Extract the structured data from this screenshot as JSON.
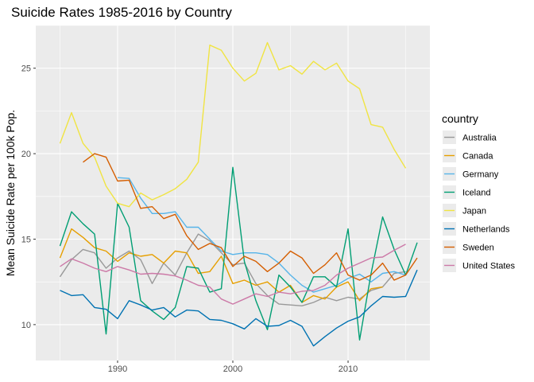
{
  "chart_data": {
    "type": "line",
    "title": "Suicide Rates 1985-2016 by Country",
    "xlabel": "",
    "ylabel": "Mean Suicide Rate per 100k Pop.",
    "xlim": [
      1982.9,
      2017.1
    ],
    "ylim": [
      7.9,
      27.5
    ],
    "x_ticks": [
      1990,
      2000,
      2010
    ],
    "y_ticks": [
      10,
      15,
      20,
      25
    ],
    "grid": true,
    "legend_title": "country",
    "legend_position": "right",
    "series": [
      {
        "name": "Australia",
        "color": "#999999",
        "x": [
          1985,
          1986,
          1987,
          1988,
          1989,
          1990,
          1991,
          1992,
          1993,
          1994,
          1995,
          1996,
          1997,
          1998,
          1999,
          2000,
          2001,
          2002,
          2003,
          2004,
          2005,
          2006,
          2007,
          2008,
          2009,
          2010,
          2011,
          2012,
          2013,
          2014,
          2015
        ],
        "y": [
          12.8,
          13.8,
          14.4,
          14.2,
          13.3,
          13.9,
          14.3,
          13.8,
          12.4,
          13.6,
          12.9,
          14.2,
          15.3,
          14.9,
          14.2,
          13.5,
          13.6,
          12.4,
          11.7,
          11.2,
          11.15,
          11.1,
          11.3,
          11.6,
          11.4,
          11.6,
          11.5,
          12.0,
          12.2,
          13.0,
          13.1
        ]
      },
      {
        "name": "Canada",
        "color": "#E69F00",
        "x": [
          1985,
          1986,
          1987,
          1988,
          1989,
          1990,
          1991,
          1992,
          1993,
          1994,
          1995,
          1996,
          1997,
          1998,
          1999,
          2000,
          2001,
          2002,
          2003,
          2004,
          2005,
          2006,
          2007,
          2008,
          2009,
          2010,
          2011,
          2012,
          2013,
          2014,
          2015
        ],
        "y": [
          13.9,
          15.6,
          15.1,
          14.5,
          14.3,
          13.7,
          14.2,
          14.0,
          14.1,
          13.6,
          14.3,
          14.2,
          13.0,
          13.1,
          14.0,
          12.4,
          12.6,
          12.3,
          12.5,
          11.9,
          12.3,
          11.3,
          11.7,
          11.5,
          12.2,
          12.5,
          11.4,
          12.1,
          12.2,
          null,
          null
        ]
      },
      {
        "name": "Germany",
        "color": "#56B4E9",
        "x": [
          1990,
          1991,
          1992,
          1993,
          1994,
          1995,
          1996,
          1997,
          1998,
          1999,
          2000,
          2001,
          2002,
          2003,
          2004,
          2005,
          2006,
          2007,
          2008,
          2009,
          2010,
          2011,
          2012,
          2013,
          2014,
          2015
        ],
        "y": [
          18.6,
          18.55,
          17.4,
          16.5,
          16.5,
          16.6,
          15.7,
          15.7,
          15.0,
          14.3,
          14.1,
          14.2,
          14.2,
          14.1,
          13.6,
          12.9,
          12.3,
          11.9,
          12.1,
          12.3,
          12.7,
          12.95,
          12.5,
          13.0,
          13.1,
          12.9
        ]
      },
      {
        "name": "Iceland",
        "color": "#009E73",
        "x": [
          1985,
          1986,
          1987,
          1988,
          1989,
          1990,
          1991,
          1992,
          1993,
          1994,
          1995,
          1996,
          1997,
          1998,
          1999,
          2000,
          2001,
          2002,
          2003,
          2004,
          2005,
          2006,
          2007,
          2008,
          2009,
          2010,
          2011,
          2012,
          2013,
          2014,
          2015,
          2016
        ],
        "y": [
          14.6,
          16.6,
          15.9,
          15.3,
          9.45,
          17.1,
          15.7,
          11.4,
          10.8,
          10.3,
          11.0,
          13.4,
          13.3,
          11.9,
          12.1,
          19.2,
          13.7,
          11.4,
          9.7,
          12.9,
          12.2,
          11.3,
          12.8,
          12.8,
          12.2,
          15.6,
          9.1,
          13.0,
          16.3,
          14.4,
          12.9,
          14.8
        ]
      },
      {
        "name": "Japan",
        "color": "#F0E442",
        "x": [
          1985,
          1986,
          1987,
          1988,
          1989,
          1990,
          1991,
          1992,
          1993,
          1994,
          1995,
          1996,
          1997,
          1998,
          1999,
          2000,
          2001,
          2002,
          2003,
          2004,
          2005,
          2006,
          2007,
          2008,
          2009,
          2010,
          2011,
          2012,
          2013,
          2014,
          2015
        ],
        "y": [
          20.6,
          22.4,
          20.6,
          19.8,
          18.1,
          17.1,
          16.9,
          17.7,
          17.3,
          17.6,
          17.95,
          18.5,
          19.5,
          26.35,
          26.05,
          25.0,
          24.25,
          24.7,
          26.5,
          24.9,
          25.15,
          24.65,
          25.4,
          24.9,
          25.3,
          24.25,
          23.8,
          21.7,
          21.55,
          20.25,
          19.15
        ]
      },
      {
        "name": "Netherlands",
        "color": "#0072B2",
        "x": [
          1985,
          1986,
          1987,
          1988,
          1989,
          1990,
          1991,
          1992,
          1993,
          1994,
          1995,
          1996,
          1997,
          1998,
          1999,
          2000,
          2001,
          2002,
          2003,
          2004,
          2005,
          2006,
          2007,
          2008,
          2009,
          2010,
          2011,
          2012,
          2013,
          2014,
          2015,
          2016
        ],
        "y": [
          12.0,
          11.7,
          11.75,
          11.0,
          10.9,
          10.35,
          11.4,
          11.15,
          10.85,
          11.0,
          10.45,
          10.85,
          10.8,
          10.3,
          10.25,
          10.05,
          9.75,
          10.35,
          9.9,
          9.95,
          10.25,
          9.9,
          8.75,
          9.3,
          9.8,
          10.2,
          10.45,
          11.1,
          11.65,
          11.6,
          11.65,
          13.2
        ]
      },
      {
        "name": "Sweden",
        "color": "#D55E00",
        "x": [
          1985,
          1986,
          1987,
          1988,
          1989,
          1990,
          1991,
          1992,
          1993,
          1994,
          1995,
          1996,
          1997,
          1998,
          1999,
          2000,
          2001,
          2002,
          2003,
          2004,
          2005,
          2006,
          2007,
          2008,
          2009,
          2010,
          2011,
          2012,
          2013,
          2014,
          2015,
          2016
        ],
        "y": [
          null,
          null,
          19.5,
          20.0,
          19.8,
          18.4,
          18.45,
          16.8,
          16.9,
          16.2,
          16.45,
          15.2,
          14.4,
          14.75,
          14.5,
          13.4,
          14.0,
          13.7,
          13.1,
          13.6,
          14.3,
          13.9,
          13.0,
          13.5,
          14.2,
          12.9,
          12.6,
          12.9,
          13.6,
          12.6,
          12.9,
          13.9
        ]
      },
      {
        "name": "United States",
        "color": "#CC79A7",
        "x": [
          1985,
          1986,
          1987,
          1988,
          1989,
          1990,
          1991,
          1992,
          1993,
          1994,
          1995,
          1996,
          1997,
          1998,
          1999,
          2000,
          2001,
          2002,
          2003,
          2004,
          2005,
          2006,
          2007,
          2008,
          2009,
          2010,
          2011,
          2012,
          2013,
          2014,
          2015
        ],
        "y": [
          13.4,
          13.85,
          13.6,
          13.3,
          13.1,
          13.4,
          13.2,
          12.95,
          13.0,
          12.95,
          12.85,
          12.6,
          12.3,
          12.2,
          11.5,
          11.2,
          11.5,
          11.8,
          11.65,
          11.9,
          11.8,
          11.95,
          12.0,
          12.3,
          12.9,
          13.3,
          13.6,
          13.9,
          13.95,
          14.35,
          14.7
        ]
      }
    ]
  }
}
